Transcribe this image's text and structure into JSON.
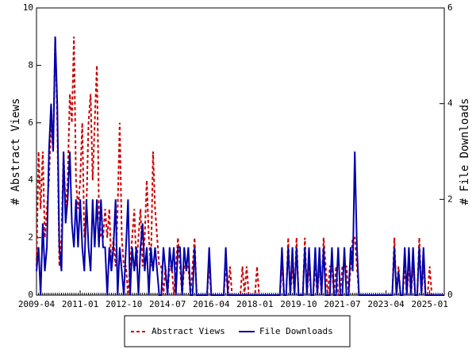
{
  "chart_data": {
    "type": "line",
    "x": [
      "2009-04",
      "2009-05",
      "2009-06",
      "2009-07",
      "2009-08",
      "2009-09",
      "2009-10",
      "2009-11",
      "2009-12",
      "2010-01",
      "2010-02",
      "2010-03",
      "2010-04",
      "2010-05",
      "2010-06",
      "2010-07",
      "2010-08",
      "2010-09",
      "2010-10",
      "2010-11",
      "2010-12",
      "2011-01",
      "2011-02",
      "2011-03",
      "2011-04",
      "2011-05",
      "2011-06",
      "2011-07",
      "2011-08",
      "2011-09",
      "2011-10",
      "2011-11",
      "2011-12",
      "2012-01",
      "2012-02",
      "2012-03",
      "2012-04",
      "2012-05",
      "2012-06",
      "2012-07",
      "2012-08",
      "2012-09",
      "2012-10",
      "2012-11",
      "2012-12",
      "2013-01",
      "2013-02",
      "2013-03",
      "2013-04",
      "2013-05",
      "2013-06",
      "2013-07",
      "2013-08",
      "2013-09",
      "2013-10",
      "2013-11",
      "2013-12",
      "2014-01",
      "2014-02",
      "2014-03",
      "2014-04",
      "2014-05",
      "2014-06",
      "2014-07",
      "2014-08",
      "2014-09",
      "2014-10",
      "2014-11",
      "2014-12",
      "2015-01",
      "2015-02",
      "2015-03",
      "2015-04",
      "2015-05",
      "2015-06",
      "2015-07",
      "2015-08",
      "2015-09",
      "2015-10",
      "2015-11",
      "2015-12",
      "2016-01",
      "2016-02",
      "2016-03",
      "2016-04",
      "2016-05",
      "2016-06",
      "2016-07",
      "2016-08",
      "2016-09",
      "2016-10",
      "2016-11",
      "2016-12",
      "2017-01",
      "2017-02",
      "2017-03",
      "2017-04",
      "2017-05",
      "2017-06",
      "2017-07",
      "2017-08",
      "2017-09",
      "2017-10",
      "2017-11",
      "2017-12",
      "2018-01",
      "2018-02",
      "2018-03",
      "2018-04",
      "2018-05",
      "2018-06",
      "2018-07",
      "2018-08",
      "2018-09",
      "2018-10",
      "2018-11",
      "2018-12",
      "2019-01",
      "2019-02",
      "2019-03",
      "2019-04",
      "2019-05",
      "2019-06",
      "2019-07",
      "2019-08",
      "2019-09",
      "2019-10",
      "2019-11",
      "2019-12",
      "2020-01",
      "2020-02",
      "2020-03",
      "2020-04",
      "2020-05",
      "2020-06",
      "2020-07",
      "2020-08",
      "2020-09",
      "2020-10",
      "2020-11",
      "2020-12",
      "2021-01",
      "2021-02",
      "2021-03",
      "2021-04",
      "2021-05",
      "2021-06",
      "2021-07",
      "2021-08",
      "2021-09",
      "2021-10",
      "2021-11",
      "2021-12",
      "2022-01",
      "2022-02",
      "2022-03",
      "2022-04",
      "2022-05",
      "2022-06",
      "2022-07",
      "2022-08",
      "2022-09",
      "2022-10",
      "2022-11",
      "2022-12",
      "2023-01",
      "2023-02",
      "2023-03",
      "2023-04",
      "2023-05",
      "2023-06",
      "2023-07",
      "2023-08",
      "2023-09",
      "2023-10",
      "2023-11",
      "2023-12",
      "2024-01",
      "2024-02",
      "2024-03",
      "2024-04",
      "2024-05",
      "2024-06",
      "2024-07",
      "2024-08",
      "2024-09",
      "2024-10",
      "2024-11",
      "2024-12",
      "2025-01",
      "2025-02",
      "2025-03",
      "2025-04",
      "2025-05",
      "2025-06",
      "2025-07",
      "2025-08"
    ],
    "series": [
      {
        "name": "Abstract Views",
        "color": "#cc0000",
        "dash": true,
        "values": [
          1,
          5,
          3,
          5,
          2,
          3,
          4,
          6,
          5,
          9,
          6,
          1,
          2,
          5,
          3,
          4,
          7,
          6,
          9,
          4,
          3,
          4,
          6,
          2,
          3,
          6,
          7,
          4,
          6,
          8,
          3,
          2,
          2,
          3,
          2,
          3,
          1,
          2,
          1,
          3,
          6,
          2,
          1,
          1,
          0,
          1,
          2,
          3,
          1,
          2,
          3,
          1,
          2,
          4,
          2,
          1,
          5,
          3,
          2,
          1,
          1,
          0,
          1,
          0,
          1,
          1,
          0,
          1,
          2,
          1,
          0,
          1,
          1,
          1,
          0,
          1,
          2,
          0,
          0,
          0,
          0,
          0,
          0,
          1,
          0,
          0,
          0,
          0,
          0,
          0,
          0,
          1,
          0,
          1,
          0,
          0,
          0,
          0,
          0,
          1,
          0,
          1,
          0,
          0,
          0,
          0,
          1,
          0,
          0,
          0,
          0,
          0,
          0,
          0,
          0,
          0,
          0,
          0,
          1,
          0,
          0,
          2,
          0,
          1,
          0,
          2,
          0,
          0,
          0,
          2,
          0,
          1,
          0,
          0,
          1,
          0,
          1,
          0,
          2,
          1,
          0,
          1,
          1,
          0,
          1,
          0,
          0,
          1,
          1,
          1,
          0,
          1,
          2,
          2,
          1,
          0,
          0,
          0,
          0,
          0,
          0,
          0,
          0,
          0,
          0,
          0,
          0,
          0,
          0,
          0,
          0,
          0,
          2,
          0,
          1,
          0,
          0,
          1,
          0,
          1,
          0,
          1,
          0,
          0,
          2,
          0,
          1,
          0,
          0,
          1,
          0,
          0,
          0,
          0,
          0,
          0,
          0
        ]
      },
      {
        "name": "File Downloads",
        "color": "#0000aa",
        "axis": "y2",
        "values": [
          0.5,
          1,
          0,
          1.5,
          0.5,
          1,
          3,
          4,
          3,
          5.4,
          4,
          1,
          0.5,
          3,
          1.5,
          2,
          3,
          1.5,
          1,
          2,
          1,
          2,
          1,
          0.5,
          2,
          1,
          0.5,
          2,
          1,
          2,
          1,
          2,
          1,
          1,
          0,
          1,
          0.5,
          1,
          2,
          0,
          1,
          0.5,
          0,
          1,
          2,
          0,
          1,
          0.5,
          1,
          0,
          1,
          1.5,
          0.5,
          1,
          0,
          1,
          0.5,
          1,
          0.5,
          0,
          0,
          1,
          0.5,
          0,
          1,
          0.5,
          1,
          0,
          1,
          1,
          0,
          1,
          0.5,
          1,
          0,
          0,
          1,
          0,
          0,
          0,
          0,
          0,
          0,
          1,
          0,
          0,
          0,
          0,
          0,
          0,
          0,
          1,
          0,
          0,
          0,
          0,
          0,
          0,
          0,
          0,
          0,
          0,
          0,
          0,
          0,
          0,
          0,
          0,
          0,
          0,
          0,
          0,
          0,
          0,
          0,
          0,
          0,
          0,
          1,
          0,
          0,
          1,
          0,
          1,
          0,
          1,
          0,
          0,
          0,
          1,
          0,
          1,
          0,
          0,
          1,
          0,
          1,
          0,
          1,
          0,
          0,
          0,
          1,
          0,
          0,
          1,
          0,
          0,
          1,
          0,
          0,
          1,
          0.5,
          3,
          1,
          0,
          0,
          0,
          0,
          0,
          0,
          0,
          0,
          0,
          0,
          0,
          0,
          0,
          0,
          0,
          0,
          0,
          1,
          0,
          0.5,
          0,
          0,
          1,
          0,
          1,
          0,
          1,
          0,
          0,
          1,
          0,
          1,
          0,
          0,
          0,
          0,
          0,
          0,
          0,
          0,
          0,
          0
        ]
      }
    ],
    "xlim": [
      "2009-04",
      "2025-08"
    ],
    "xticks": [
      "2009-04",
      "2011-01",
      "2012-10",
      "2014-07",
      "2016-04",
      "2018-01",
      "2019-10",
      "2021-07",
      "2023-04",
      "2025-01"
    ],
    "ylabel": "# Abstract Views",
    "ylim": [
      0,
      10
    ],
    "yticks": [
      0,
      2,
      4,
      6,
      8,
      10
    ],
    "y2label": "# File Downloads",
    "y2lim": [
      0,
      6
    ],
    "y2ticks": [
      0,
      2,
      4,
      6
    ],
    "legend": "bottom"
  }
}
